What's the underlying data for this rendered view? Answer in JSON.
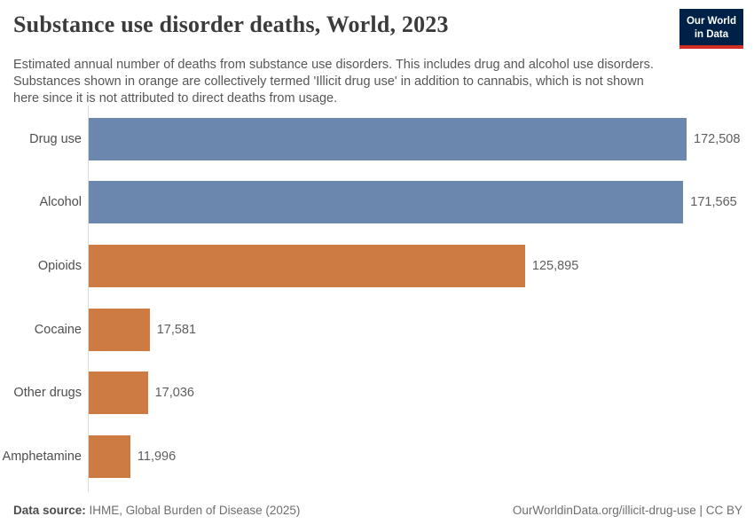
{
  "header": {
    "title": "Substance use disorder deaths, World, 2023",
    "subtitle_lines": [
      "Estimated annual number of deaths from substance use disorders. This includes drug and alcohol use disorders.",
      "Substances shown in orange are collectively termed 'Illicit drug use' in addition to cannabis, which is not shown",
      "here since it is not attributed to direct deaths from usage."
    ],
    "logo": {
      "line1": "Our World",
      "line2": "in Data"
    }
  },
  "chart_data": {
    "type": "bar",
    "orientation": "horizontal",
    "title": "Substance use disorder deaths, World, 2023",
    "entity": "World",
    "year": "2023",
    "categories": [
      "Drug use",
      "Alcohol",
      "Opioids",
      "Cocaine",
      "Other drugs",
      "Amphetamine"
    ],
    "values": [
      172508,
      171565,
      125895,
      17581,
      17036,
      11996
    ],
    "value_labels": [
      "172,508",
      "171,565",
      "125,895",
      "17,581",
      "17,036",
      "11,996"
    ],
    "bar_colors": [
      "#6c87ad",
      "#6c87ad",
      "#cd7a43",
      "#cd7a43",
      "#cd7a43",
      "#cd7a43"
    ],
    "xlim": [
      0,
      172508
    ],
    "grid": false,
    "legend": "none"
  },
  "footer": {
    "source_label": "Data source:",
    "source_text": " IHME, Global Burden of Disease (2025)",
    "link_text": "OurWorldinData.org/illicit-drug-use | CC BY"
  },
  "colors": {
    "blue_bar": "#6c87ad",
    "orange_bar": "#cd7a43",
    "logo_bg": "#002147",
    "logo_red": "#d12e26",
    "title_text": "#3b3b3b",
    "body_text": "#575757",
    "axis_line": "#dcdcdc"
  }
}
